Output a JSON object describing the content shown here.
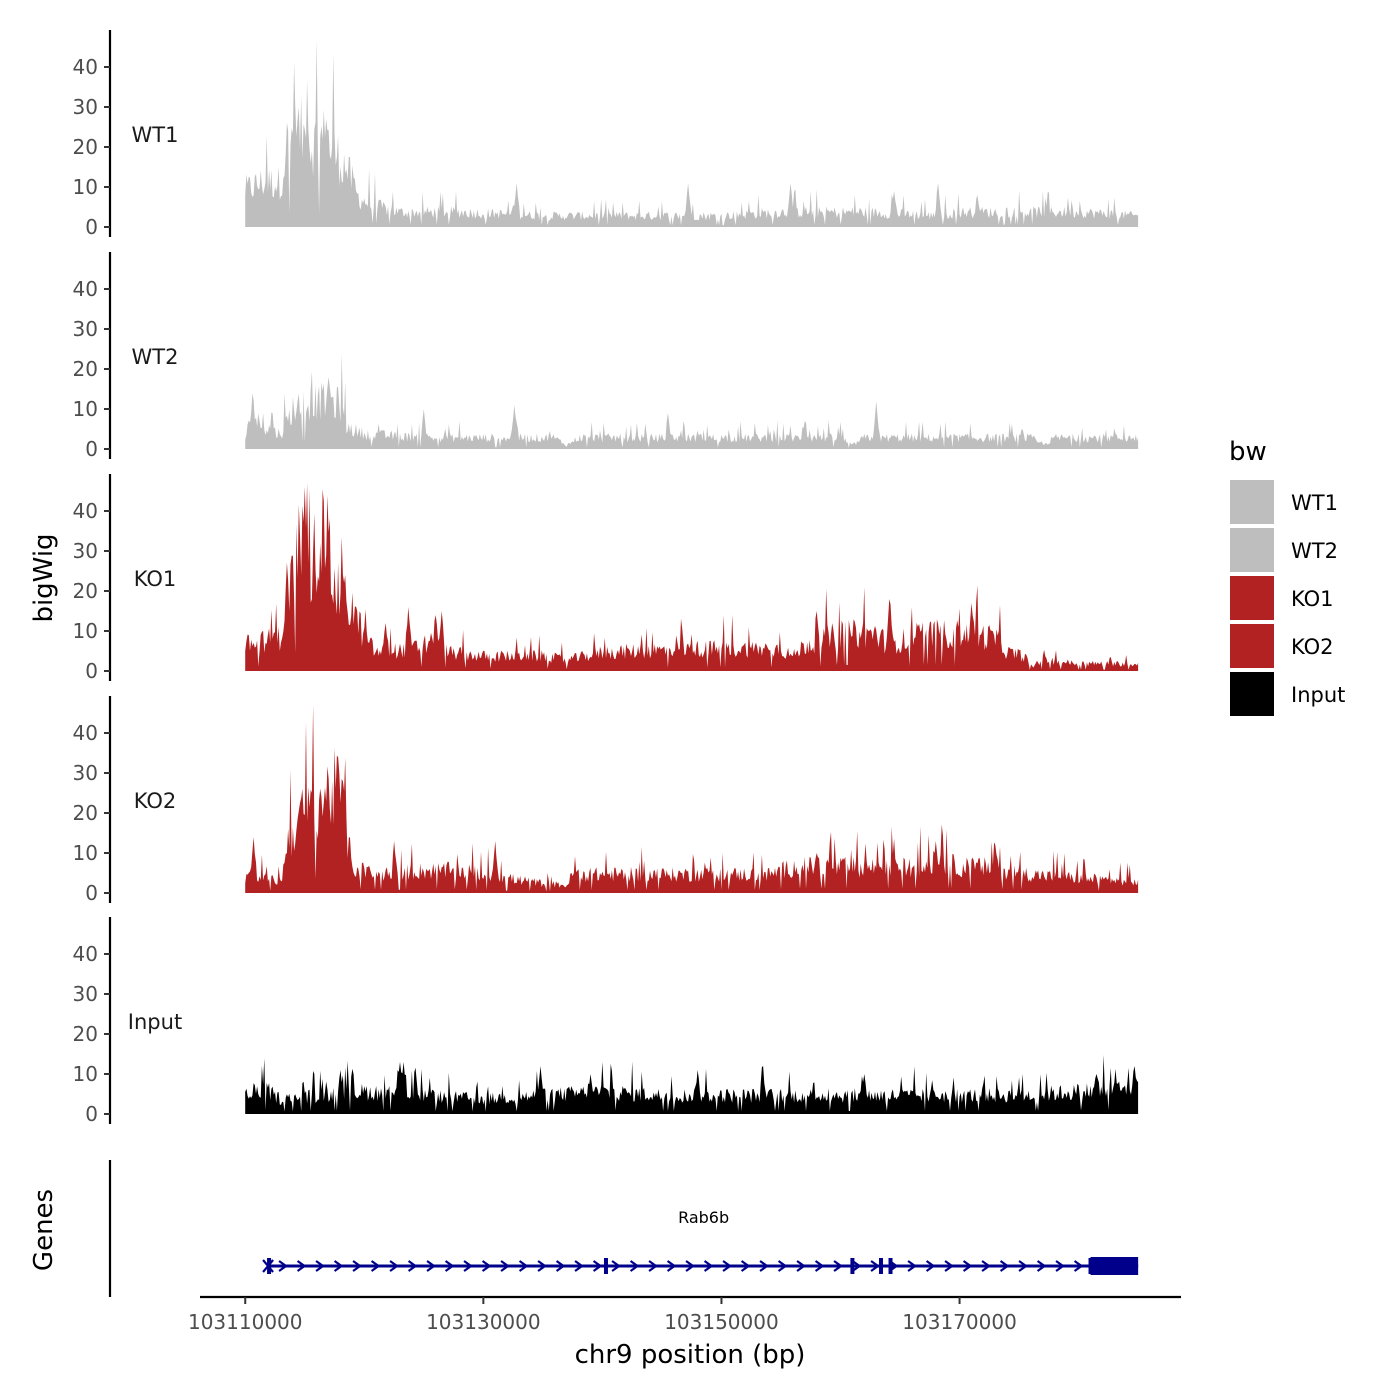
{
  "chart_data": {
    "type": "area",
    "y_axis_title": "bigWig",
    "x_axis_title": "chr9 position (bp)",
    "genes_axis_title": "Genes",
    "x_range": [
      103110000,
      103185000
    ],
    "x_axis_range": [
      103106200,
      103188600
    ],
    "x_ticks": [
      103110000,
      103130000,
      103150000,
      103170000
    ],
    "x_tick_labels": [
      "103110000",
      "103130000",
      "103150000",
      "103170000"
    ],
    "y_range": [
      0,
      48
    ],
    "y_ticks": [
      0,
      10,
      20,
      30,
      40
    ],
    "y_tick_labels": [
      "0",
      "10",
      "20",
      "30",
      "40"
    ],
    "legend_title": "bw",
    "legend": [
      {
        "label": "WT1",
        "color": "#bebebe"
      },
      {
        "label": "WT2",
        "color": "#bebebe"
      },
      {
        "label": "KO1",
        "color": "#b22222"
      },
      {
        "label": "KO2",
        "color": "#b22222"
      },
      {
        "label": "Input",
        "color": "#000000"
      }
    ],
    "tracks": [
      {
        "name": "WT1",
        "color": "#bebebe",
        "profile": [
          [
            0,
            10
          ],
          [
            1500,
            12
          ],
          [
            3000,
            12
          ],
          [
            3500,
            22
          ],
          [
            4500,
            26
          ],
          [
            5500,
            22
          ],
          [
            6500,
            24
          ],
          [
            7500,
            20
          ],
          [
            8500,
            16
          ],
          [
            9500,
            8
          ],
          [
            10500,
            6
          ],
          [
            13000,
            4
          ],
          [
            18000,
            4
          ],
          [
            25000,
            3
          ],
          [
            30000,
            3
          ],
          [
            40000,
            3
          ],
          [
            45000,
            4
          ],
          [
            52000,
            4
          ],
          [
            58000,
            3
          ],
          [
            60000,
            4
          ],
          [
            66000,
            4
          ],
          [
            70000,
            4
          ],
          [
            75000,
            3
          ]
        ],
        "peaks": [
          [
            4200,
            28
          ],
          [
            5200,
            27
          ],
          [
            6800,
            27
          ],
          [
            22800,
            11
          ],
          [
            37200,
            11
          ],
          [
            45800,
            11
          ],
          [
            58200,
            11
          ],
          [
            54500,
            9
          ],
          [
            61500,
            8
          ]
        ]
      },
      {
        "name": "WT2",
        "color": "#bebebe",
        "profile": [
          [
            0,
            3
          ],
          [
            500,
            9
          ],
          [
            1500,
            6
          ],
          [
            3000,
            4
          ],
          [
            4000,
            11
          ],
          [
            5000,
            12
          ],
          [
            6500,
            13
          ],
          [
            8000,
            12
          ],
          [
            8500,
            6
          ],
          [
            10000,
            4
          ],
          [
            15000,
            3
          ],
          [
            22000,
            3
          ],
          [
            26000,
            3
          ],
          [
            27000,
            1
          ],
          [
            28000,
            3
          ],
          [
            35000,
            3
          ],
          [
            45000,
            3
          ],
          [
            50000,
            3
          ],
          [
            51000,
            1
          ],
          [
            52000,
            3
          ],
          [
            58000,
            3
          ],
          [
            63000,
            3
          ],
          [
            66000,
            3
          ],
          [
            67000,
            1
          ],
          [
            68000,
            3
          ],
          [
            75000,
            3
          ]
        ],
        "peaks": [
          [
            600,
            14
          ],
          [
            7000,
            18
          ],
          [
            15000,
            10
          ],
          [
            22600,
            11
          ],
          [
            35500,
            9
          ],
          [
            53000,
            12
          ],
          [
            47000,
            7
          ]
        ]
      },
      {
        "name": "KO1",
        "color": "#b22222",
        "profile": [
          [
            0,
            7
          ],
          [
            1500,
            8
          ],
          [
            3000,
            9
          ],
          [
            3500,
            22
          ],
          [
            4500,
            33
          ],
          [
            5500,
            30
          ],
          [
            6500,
            37
          ],
          [
            7500,
            22
          ],
          [
            9000,
            17
          ],
          [
            10000,
            9
          ],
          [
            11000,
            5
          ],
          [
            14000,
            6
          ],
          [
            16000,
            8
          ],
          [
            17000,
            5
          ],
          [
            20000,
            4
          ],
          [
            25000,
            4
          ],
          [
            27000,
            3
          ],
          [
            30000,
            5
          ],
          [
            38000,
            6
          ],
          [
            45000,
            6
          ],
          [
            46000,
            4
          ],
          [
            47000,
            7
          ],
          [
            50000,
            10
          ],
          [
            53000,
            10
          ],
          [
            54000,
            7
          ],
          [
            57000,
            10
          ],
          [
            60000,
            10
          ],
          [
            63000,
            9
          ],
          [
            64000,
            5
          ],
          [
            65500,
            4
          ],
          [
            66000,
            1
          ],
          [
            67000,
            3
          ],
          [
            70000,
            2
          ],
          [
            75000,
            2
          ]
        ],
        "peaks": [
          [
            5000,
            46
          ],
          [
            6900,
            44
          ],
          [
            13700,
            16
          ],
          [
            16000,
            14
          ],
          [
            48000,
            15
          ],
          [
            54100,
            18
          ],
          [
            61000,
            17
          ],
          [
            16500,
            15
          ],
          [
            11800,
            12
          ]
        ]
      },
      {
        "name": "KO2",
        "color": "#b22222",
        "profile": [
          [
            0,
            4
          ],
          [
            500,
            6
          ],
          [
            1500,
            4
          ],
          [
            3000,
            3
          ],
          [
            3500,
            13
          ],
          [
            4500,
            20
          ],
          [
            5500,
            22
          ],
          [
            6500,
            26
          ],
          [
            7500,
            28
          ],
          [
            8000,
            26
          ],
          [
            9000,
            7
          ],
          [
            11000,
            5
          ],
          [
            15000,
            6
          ],
          [
            18000,
            6
          ],
          [
            20000,
            5
          ],
          [
            22000,
            4
          ],
          [
            24000,
            3
          ],
          [
            27000,
            2
          ],
          [
            27500,
            5
          ],
          [
            35000,
            5
          ],
          [
            40000,
            5
          ],
          [
            44000,
            5
          ],
          [
            46000,
            7
          ],
          [
            50000,
            7
          ],
          [
            55000,
            7
          ],
          [
            57000,
            7
          ],
          [
            58000,
            9
          ],
          [
            60000,
            7
          ],
          [
            62000,
            7
          ],
          [
            66000,
            5
          ],
          [
            70000,
            4
          ],
          [
            75000,
            3
          ]
        ],
        "peaks": [
          [
            700,
            14
          ],
          [
            7800,
            34
          ],
          [
            12500,
            13
          ],
          [
            21000,
            13
          ],
          [
            48000,
            10
          ],
          [
            58000,
            13
          ],
          [
            54500,
            11
          ],
          [
            63000,
            12
          ]
        ]
      },
      {
        "name": "Input",
        "color": "#000000",
        "profile": [
          [
            0,
            5
          ],
          [
            1500,
            7
          ],
          [
            3000,
            4
          ],
          [
            6000,
            5
          ],
          [
            10000,
            6
          ],
          [
            15000,
            5
          ],
          [
            20000,
            4
          ],
          [
            25000,
            5
          ],
          [
            30000,
            6
          ],
          [
            35000,
            5
          ],
          [
            40000,
            5
          ],
          [
            45000,
            5
          ],
          [
            50000,
            5
          ],
          [
            55000,
            5
          ],
          [
            60000,
            5
          ],
          [
            65000,
            5
          ],
          [
            70000,
            6
          ],
          [
            75000,
            7
          ]
        ],
        "peaks": [
          [
            13000,
            13
          ],
          [
            13300,
            13
          ],
          [
            24800,
            12
          ],
          [
            43500,
            12
          ],
          [
            74700,
            12
          ],
          [
            71500,
            10
          ],
          [
            8000,
            11
          ],
          [
            38000,
            11
          ],
          [
            52000,
            10
          ],
          [
            29000,
            10
          ]
        ]
      }
    ],
    "gene": {
      "name": "Rab6b",
      "color": "#00008b",
      "start": 103112000,
      "end": 103185000,
      "thick_start": 103181000,
      "exons": [
        103112000,
        103140300,
        103161000,
        103163400,
        103164200,
        103181000
      ]
    }
  }
}
